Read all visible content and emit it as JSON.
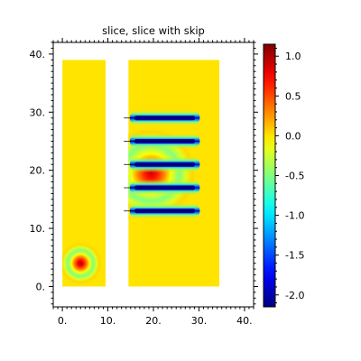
{
  "chart_data": {
    "type": "heatmap",
    "title": "slice, slice with skip",
    "xlabel": "",
    "ylabel": "",
    "xlim": [
      -2,
      42
    ],
    "ylim": [
      -3.5,
      42
    ],
    "x_ticks": [
      0,
      10,
      20,
      30,
      40
    ],
    "x_tick_labels": [
      "0.",
      "10.",
      "20.",
      "30.",
      "40."
    ],
    "y_ticks": [
      0,
      10,
      20,
      30,
      40
    ],
    "y_tick_labels": [
      "0.",
      "10.",
      "20.",
      "30.",
      "40."
    ],
    "colorbar": {
      "min": -2.15,
      "max": 1.15,
      "ticks": [
        1.0,
        0.5,
        0.0,
        -0.5,
        -1.0,
        -1.5,
        -2.0
      ],
      "tick_labels": [
        "1.0",
        "0.5",
        "0.0",
        "-0.5",
        "-1.0",
        "-1.5",
        "-2.0"
      ]
    },
    "regions": [
      {
        "name": "left-slab",
        "x": [
          0,
          9.5
        ],
        "y": [
          0,
          39
        ]
      },
      {
        "name": "right-slab",
        "x": [
          14.5,
          34.5
        ],
        "y": [
          0,
          39
        ]
      }
    ],
    "sources": [
      {
        "x": 4,
        "y": 4,
        "amplitude": 1.0
      },
      {
        "x": 19.5,
        "y": 19.5,
        "amplitude": 0.9
      }
    ],
    "slices": [
      {
        "y": 29,
        "x_start": 16,
        "x_end": 29,
        "value": -2.0
      },
      {
        "y": 25,
        "x_start": 16,
        "x_end": 29,
        "value": -2.0
      },
      {
        "y": 21,
        "x_start": 16,
        "x_end": 29,
        "value": -2.0
      },
      {
        "y": 17,
        "x_start": 16,
        "x_end": 29,
        "value": -2.0
      },
      {
        "y": 13,
        "x_start": 16,
        "x_end": 29,
        "value": -2.0
      }
    ]
  }
}
